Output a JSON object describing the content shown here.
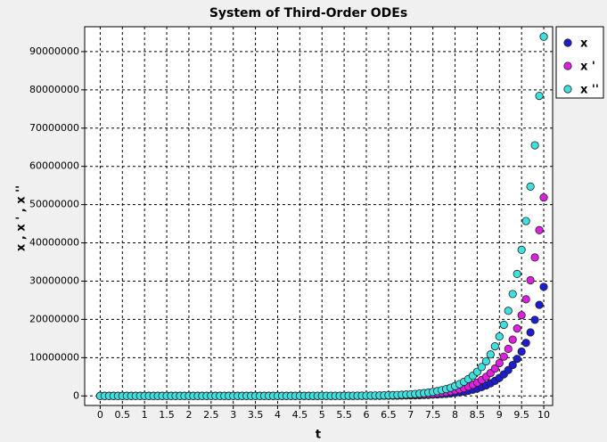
{
  "chart_data": {
    "type": "scatter",
    "title": "System of Third-Order ODEs",
    "x_label": "t",
    "y_label": "x , x ' , x ''",
    "x": [
      0,
      0.1,
      0.2,
      0.3,
      0.4,
      0.5,
      0.6,
      0.7,
      0.8,
      0.9,
      1,
      1.1,
      1.2,
      1.3,
      1.4,
      1.5,
      1.6,
      1.7,
      1.8,
      1.9,
      2,
      2.1,
      2.2,
      2.3,
      2.4,
      2.5,
      2.6,
      2.7,
      2.8,
      2.9,
      3,
      3.1,
      3.2,
      3.3,
      3.4,
      3.5,
      3.6,
      3.7,
      3.8,
      3.9,
      4,
      4.1,
      4.2,
      4.3,
      4.4,
      4.5,
      4.6,
      4.7,
      4.8,
      4.9,
      5,
      5.1,
      5.2,
      5.3,
      5.4,
      5.5,
      5.6,
      5.7,
      5.8,
      5.9,
      6,
      6.1,
      6.2,
      6.3,
      6.4,
      6.5,
      6.6,
      6.7,
      6.8,
      6.9,
      7,
      7.1,
      7.2,
      7.3,
      7.4,
      7.5,
      7.6,
      7.7,
      7.8,
      7.9,
      8,
      8.1,
      8.2,
      8.3,
      8.4,
      8.5,
      8.6,
      8.7,
      8.8,
      8.9,
      9,
      9.1,
      9.2,
      9.3,
      9.4,
      9.5,
      9.6,
      9.7,
      9.8,
      9.9,
      10
    ],
    "series": [
      {
        "name": "x",
        "color": "#1c1cd0",
        "values": [
          0.43,
          0.52,
          0.62,
          0.74,
          0.89,
          1.07,
          1.28,
          1.53,
          1.83,
          2.19,
          2.63,
          3.14,
          3.76,
          4.5,
          5.39,
          6.46,
          7.73,
          9.26,
          11.1,
          13.3,
          15.9,
          19,
          22.8,
          27.3,
          32.6,
          39.1,
          46.8,
          56,
          67.1,
          80.2,
          96.1,
          115,
          138,
          165,
          197,
          236,
          283,
          339,
          406,
          486,
          581,
          696,
          833,
          997,
          1194,
          1430,
          1712,
          2049,
          2453,
          2937,
          3517,
          4210,
          5040,
          6035,
          7225,
          8650,
          10356,
          12398,
          14843,
          17771,
          21275,
          25471,
          30495,
          36509,
          43709,
          52327,
          62647,
          75003,
          89795,
          107504,
          128706,
          154090,
          184479,
          220860,
          264418,
          316566,
          379000,
          453745,
          543230,
          650365,
          778629,
          932190,
          1116025,
          1336124,
          1599637,
          1915115,
          2292810,
          2744990,
          3286388,
          3934480,
          4710428,
          5639418,
          6751601,
          8083163,
          9677251,
          11585768,
          13870711,
          16606290,
          19881389,
          23802201,
          28496427
        ]
      },
      {
        "name": "x '",
        "color": "#e020e0",
        "values": [
          0.79,
          0.95,
          1.13,
          1.36,
          1.62,
          1.94,
          2.33,
          2.79,
          3.33,
          3.99,
          4.78,
          5.72,
          6.85,
          8.2,
          9.82,
          11.8,
          14.1,
          16.9,
          20.2,
          24.1,
          28.9,
          34.6,
          41.5,
          49.6,
          59.4,
          71.1,
          85.2,
          102,
          122,
          146,
          175,
          209,
          251,
          300,
          359,
          430,
          515,
          617,
          738,
          884,
          1058,
          1267,
          1517,
          1815,
          2174,
          2602,
          3116,
          3730,
          4466,
          5347,
          6401,
          7664,
          9175,
          10985,
          13151,
          15745,
          18850,
          22568,
          27019,
          32347,
          38726,
          46364,
          55509,
          66456,
          79562,
          95250,
          114035,
          136526,
          163451,
          195688,
          234281,
          280486,
          335802,
          402026,
          481314,
          576237,
          689882,
          825941,
          988830,
          1183842,
          1417319,
          1696843,
          2031474,
          2432115,
          2911782,
          3486039,
          4173549,
          4996640,
          5982134,
          7161842,
          8574281,
          10265300,
          12289781,
          14713591,
          17615272,
          21089301,
          25248530,
          30228039,
          36189625,
          43326586,
          51871376
        ]
      },
      {
        "name": "x ''",
        "color": "#40e0e0",
        "values": [
          1.43,
          1.71,
          2.05,
          2.45,
          2.94,
          3.52,
          4.21,
          5.04,
          6.04,
          7.23,
          8.65,
          10.4,
          12.4,
          14.8,
          17.8,
          21.3,
          25.5,
          30.5,
          36.5,
          43.7,
          52.3,
          62.6,
          75.1,
          89.8,
          108,
          129,
          154,
          184,
          221,
          264,
          317,
          379,
          454,
          543,
          651,
          779,
          932,
          1116,
          1336,
          1600,
          1915,
          2294,
          2746,
          3286,
          3935,
          4710,
          5640,
          6752,
          8084,
          9678,
          11587,
          13872,
          16608,
          19884,
          23805,
          28500,
          34121,
          40851,
          48907,
          58553,
          70100,
          83925,
          100478,
          120293,
          144017,
          172415,
          206418,
          247130,
          295867,
          354220,
          424078,
          507715,
          607844,
          727717,
          871239,
          1043062,
          1248773,
          1495058,
          1789910,
          2142904,
          2565527,
          3071501,
          3677225,
          4402435,
          5270694,
          6310171,
          7554651,
          9044551,
          10828420,
          12963841,
          15520534,
          18581493,
          22246060,
          26633463,
          31885873,
          38174305,
          45703035,
          54716578,
          65507802,
          78426605,
          93893757
        ]
      }
    ],
    "xlim": [
      -0.35,
      10.2
    ],
    "ylim": [
      -2500000,
      96500000
    ],
    "xticks": [
      0,
      0.5,
      1,
      1.5,
      2,
      2.5,
      3,
      3.5,
      4,
      4.5,
      5,
      5.5,
      6,
      6.5,
      7,
      7.5,
      8,
      8.5,
      9,
      9.5,
      10
    ],
    "yticks": [
      0,
      10000000,
      20000000,
      30000000,
      40000000,
      50000000,
      60000000,
      70000000,
      80000000,
      90000000
    ],
    "grid": true,
    "legend": "right"
  }
}
